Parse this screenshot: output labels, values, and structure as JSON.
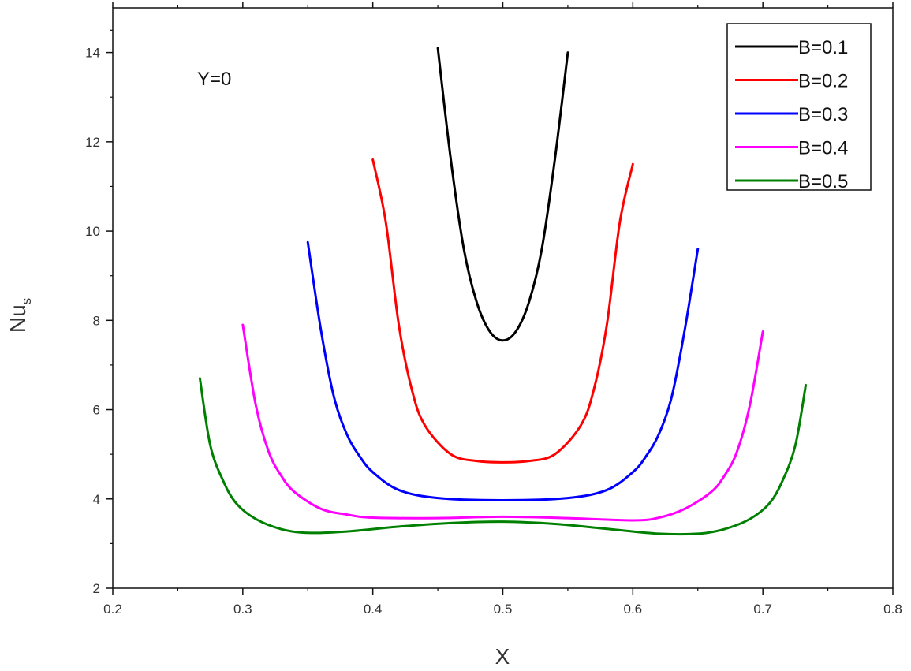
{
  "chart_data": {
    "type": "line",
    "xlabel": "X",
    "ylabel_main": "Nu",
    "ylabel_sub": "s",
    "annotation": "Y=0",
    "xlim": [
      0.2,
      0.8
    ],
    "ylim": [
      2,
      15
    ],
    "xticks": [
      0.2,
      0.3,
      0.4,
      0.5,
      0.6,
      0.7,
      0.8
    ],
    "yticks": [
      2,
      4,
      6,
      8,
      10,
      12,
      14
    ],
    "grid": false,
    "legend_position": "top-right",
    "series": [
      {
        "name": "B=0.1",
        "color": "#000000",
        "x": [
          0.45,
          0.46,
          0.47,
          0.48,
          0.49,
          0.5,
          0.51,
          0.52,
          0.53,
          0.54,
          0.55
        ],
        "y": [
          14.1,
          11.6,
          9.6,
          8.4,
          7.75,
          7.55,
          7.75,
          8.4,
          9.6,
          11.6,
          14.0
        ]
      },
      {
        "name": "B=0.2",
        "color": "#ff0000",
        "x": [
          0.4,
          0.41,
          0.42,
          0.43,
          0.44,
          0.46,
          0.48,
          0.5,
          0.52,
          0.54,
          0.56,
          0.57,
          0.58,
          0.59,
          0.6
        ],
        "y": [
          11.6,
          10.2,
          7.9,
          6.45,
          5.65,
          5.0,
          4.85,
          4.82,
          4.85,
          5.0,
          5.65,
          6.45,
          7.9,
          10.2,
          11.5
        ]
      },
      {
        "name": "B=0.3",
        "color": "#0000ff",
        "x": [
          0.35,
          0.36,
          0.37,
          0.38,
          0.39,
          0.4,
          0.42,
          0.45,
          0.5,
          0.55,
          0.58,
          0.6,
          0.61,
          0.62,
          0.63,
          0.64,
          0.65
        ],
        "y": [
          9.75,
          7.8,
          6.3,
          5.45,
          4.95,
          4.6,
          4.2,
          4.02,
          3.97,
          4.02,
          4.2,
          4.6,
          4.95,
          5.45,
          6.3,
          7.8,
          9.6
        ]
      },
      {
        "name": "B=0.4",
        "color": "#ff00ff",
        "x": [
          0.3,
          0.31,
          0.32,
          0.33,
          0.34,
          0.36,
          0.38,
          0.4,
          0.45,
          0.5,
          0.55,
          0.6,
          0.62,
          0.64,
          0.66,
          0.67,
          0.68,
          0.69,
          0.7
        ],
        "y": [
          7.9,
          6.1,
          5.05,
          4.5,
          4.15,
          3.78,
          3.65,
          3.58,
          3.57,
          3.6,
          3.57,
          3.52,
          3.58,
          3.78,
          4.15,
          4.5,
          5.05,
          6.1,
          7.75
        ]
      },
      {
        "name": "B=0.5",
        "color": "#008000",
        "x": [
          0.267,
          0.275,
          0.285,
          0.295,
          0.31,
          0.33,
          0.35,
          0.38,
          0.42,
          0.46,
          0.5,
          0.54,
          0.58,
          0.62,
          0.65,
          0.67,
          0.69,
          0.705,
          0.715,
          0.725,
          0.733
        ],
        "y": [
          6.7,
          5.2,
          4.4,
          3.9,
          3.55,
          3.32,
          3.24,
          3.27,
          3.38,
          3.46,
          3.49,
          3.44,
          3.33,
          3.22,
          3.22,
          3.32,
          3.55,
          3.9,
          4.4,
          5.2,
          6.55
        ]
      }
    ]
  }
}
